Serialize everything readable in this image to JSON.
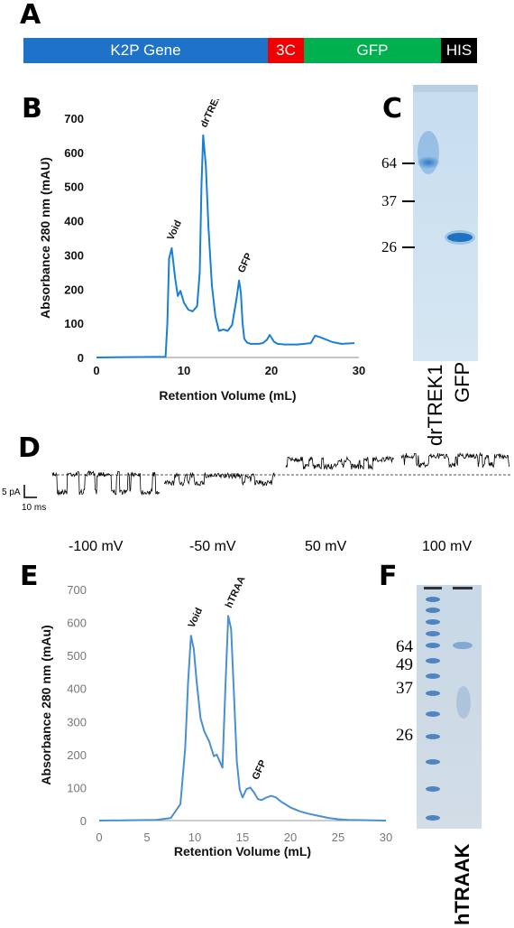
{
  "panels": {
    "a": "A",
    "b": "B",
    "c": "C",
    "d": "D",
    "e": "E",
    "f": "F"
  },
  "construct": {
    "segments": [
      {
        "label": "K2P Gene",
        "color": "#1e73c8"
      },
      {
        "label": "3C",
        "color": "#f00000"
      },
      {
        "label": "GFP",
        "color": "#00b04f"
      },
      {
        "label": "HIS",
        "color": "#000000"
      }
    ]
  },
  "chart_data": [
    {
      "type": "line",
      "ylabel": "Absorbance 280 nm (mAU)",
      "xlabel": "Retention Volume (mL)",
      "xlim": [
        0,
        30
      ],
      "ylim": [
        0,
        700
      ],
      "xticks": [
        "0",
        "10",
        "20",
        "30"
      ],
      "yticks": [
        "0",
        "100",
        "200",
        "300",
        "400",
        "500",
        "600",
        "700"
      ],
      "grid": false,
      "series": [
        {
          "color": "#1a7fd4",
          "x": [
            0,
            7.9,
            8.1,
            8.3,
            8.6,
            9.0,
            9.3,
            9.6,
            10.0,
            10.5,
            11.0,
            11.5,
            11.8,
            12.0,
            12.2,
            12.5,
            12.8,
            13.2,
            13.6,
            14.0,
            14.5,
            15.0,
            15.5,
            16.0,
            16.3,
            16.5,
            16.7,
            16.9,
            17.2,
            17.6,
            18.0,
            18.5,
            19.0,
            19.5,
            19.8,
            20.0,
            20.3,
            20.7,
            21.5,
            23.0,
            24.5,
            25.0,
            25.5,
            26.0,
            27.0,
            28.0,
            29.5
          ],
          "y": [
            0,
            2,
            100,
            290,
            320,
            230,
            180,
            195,
            160,
            140,
            135,
            150,
            250,
            500,
            650,
            560,
            380,
            210,
            120,
            78,
            82,
            78,
            95,
            170,
            225,
            190,
            100,
            55,
            44,
            40,
            40,
            40,
            42,
            52,
            66,
            58,
            46,
            40,
            38,
            38,
            42,
            64,
            60,
            55,
            45,
            40,
            42
          ]
        }
      ],
      "annotations": [
        {
          "text": "Void",
          "x": 8.4,
          "y": 320
        },
        {
          "text": "drTREK1",
          "x": 12.2,
          "y": 650
        },
        {
          "text": "GFP",
          "x": 16.5,
          "y": 225
        }
      ]
    },
    {
      "type": "line",
      "ylabel": "Absorbance 280 nm (mAu)",
      "xlabel": "Retention Volume (mL)",
      "xlim": [
        0,
        30
      ],
      "ylim": [
        0,
        700
      ],
      "xticks": [
        "0",
        "5",
        "10",
        "15",
        "20",
        "25",
        "30"
      ],
      "yticks": [
        "0",
        "100",
        "200",
        "300",
        "400",
        "500",
        "600",
        "700"
      ],
      "grid": false,
      "series": [
        {
          "color": "#4a8fd2",
          "x": [
            0,
            6.0,
            7.5,
            8.5,
            9.0,
            9.3,
            9.6,
            9.9,
            10.2,
            10.6,
            11.0,
            11.5,
            12.0,
            12.3,
            12.6,
            12.9,
            13.2,
            13.5,
            13.8,
            14.1,
            14.4,
            14.7,
            15.0,
            15.4,
            15.8,
            16.2,
            16.6,
            17.0,
            17.5,
            18.0,
            18.5,
            19.0,
            20.0,
            21.0,
            22.0,
            23.0,
            24.0,
            25.0,
            26.0,
            28.0,
            30.0
          ],
          "y": [
            0,
            2,
            8,
            50,
            220,
            420,
            560,
            520,
            420,
            310,
            270,
            240,
            195,
            200,
            180,
            160,
            400,
            620,
            580,
            380,
            180,
            95,
            70,
            95,
            100,
            85,
            65,
            62,
            70,
            75,
            70,
            58,
            40,
            28,
            20,
            14,
            8,
            4,
            2,
            1,
            0
          ]
        }
      ],
      "annotations": [
        {
          "text": "Void",
          "x": 9.6,
          "y": 560
        },
        {
          "text": "hTRAAK",
          "x": 13.5,
          "y": 620
        },
        {
          "text": "GFP",
          "x": 16.3,
          "y": 100
        }
      ]
    }
  ],
  "gel_c": {
    "markers": [
      "64",
      "37",
      "26"
    ],
    "lanes": [
      "drTREK1",
      "GFP"
    ]
  },
  "trace": {
    "scale_current": "5 pA",
    "scale_time": "10 ms",
    "voltages": [
      "-100 mV",
      "-50 mV",
      "50 mV",
      "100 mV"
    ]
  },
  "gel_f": {
    "markers": [
      "64",
      "49",
      "37",
      "26"
    ],
    "lane": "hTRAAK"
  }
}
